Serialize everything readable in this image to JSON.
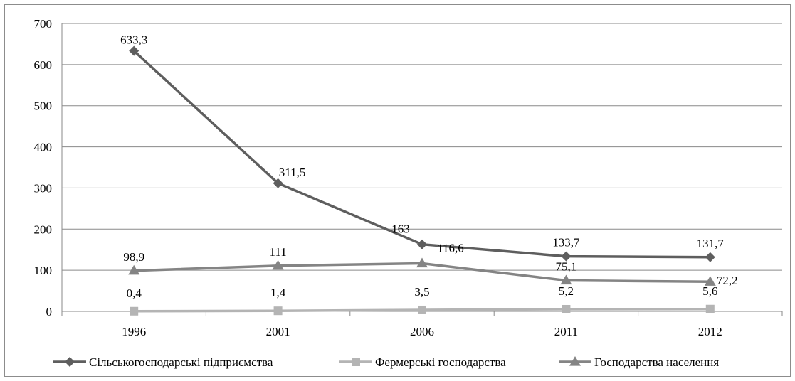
{
  "chart_data": {
    "type": "line",
    "categories": [
      "1996",
      "2001",
      "2006",
      "2011",
      "2012"
    ],
    "ylim": [
      0,
      700
    ],
    "yticks": [
      0,
      100,
      200,
      300,
      400,
      500,
      600,
      700
    ],
    "ytick_labels": [
      "0",
      "100",
      "200",
      "300",
      "400",
      "500",
      "600",
      "700"
    ],
    "grid": true,
    "legend_position": "bottom",
    "series": [
      {
        "name": "Сільськогосподарські підприємства",
        "values": [
          633.3,
          311.5,
          163,
          133.7,
          131.7
        ],
        "labels": [
          "633,3",
          "311,5",
          "163",
          "133,7",
          "131,7"
        ],
        "color": "#5e5e5e",
        "marker": "diamond"
      },
      {
        "name": "Фермерські господарства",
        "values": [
          0.4,
          1.4,
          3.5,
          5.2,
          5.6
        ],
        "labels": [
          "0,4",
          "1,4",
          "3,5",
          "5,2",
          "5,6"
        ],
        "color": "#b4b4b4",
        "marker": "square"
      },
      {
        "name": "Господарства населення",
        "values": [
          98.9,
          111,
          116.6,
          75.1,
          72.2
        ],
        "labels": [
          "98,9",
          "111",
          "116,6",
          "75,1",
          "72,2"
        ],
        "color": "#848484",
        "marker": "triangle"
      }
    ]
  }
}
